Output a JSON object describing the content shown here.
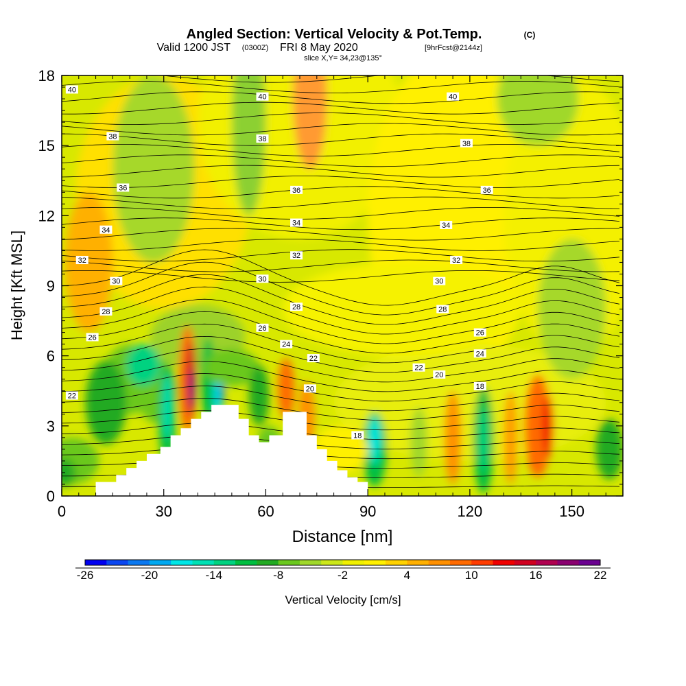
{
  "chart_data": {
    "type": "heatmap",
    "title": {
      "main": "Angled Section: Vertical Velocity & Pot.Temp.",
      "main_unit": "(C)",
      "valid_prefix": "Valid 1200 JST",
      "valid_utc": "(0300Z)",
      "valid_date": "FRI 8 May 2020",
      "forecast": "[9hrFcst@2144z]",
      "slice": "slice X,Y= 34,23@135°"
    },
    "xlabel": "Distance [nm]",
    "ylabel": "Height [Kft MSL]",
    "xlim": [
      0,
      165
    ],
    "ylim": [
      0,
      18
    ],
    "x_ticks": [
      "0",
      "30",
      "60",
      "90",
      "120",
      "150"
    ],
    "y_ticks": [
      "0",
      "3",
      "6",
      "9",
      "12",
      "15",
      "18"
    ],
    "colorbar": {
      "label": "Vertical Velocity [cm/s]",
      "tick_labels": [
        "-26",
        "-20",
        "-14",
        "-8",
        "-2",
        "4",
        "10",
        "16",
        "22"
      ],
      "colors": [
        "#0000f0",
        "#0a46f0",
        "#0a78f0",
        "#00a8f0",
        "#00e6e6",
        "#00e0b4",
        "#00d280",
        "#00be40",
        "#22aa22",
        "#6ac81e",
        "#a0d82a",
        "#cce81a",
        "#f0f000",
        "#fff000",
        "#ffd200",
        "#ffb000",
        "#ff9000",
        "#ff6a00",
        "#ff3c00",
        "#f00000",
        "#d00020",
        "#b00050",
        "#8a0070",
        "#6a0090"
      ]
    },
    "theta_labels": [
      {
        "text": "40",
        "x": 3,
        "y": 17.4
      },
      {
        "text": "40",
        "x": 59,
        "y": 17.1
      },
      {
        "text": "40",
        "x": 115,
        "y": 17.1
      },
      {
        "text": "38",
        "x": 15,
        "y": 15.4
      },
      {
        "text": "38",
        "x": 59,
        "y": 15.3
      },
      {
        "text": "38",
        "x": 119,
        "y": 15.1
      },
      {
        "text": "36",
        "x": 18,
        "y": 13.2
      },
      {
        "text": "36",
        "x": 69,
        "y": 13.1
      },
      {
        "text": "36",
        "x": 125,
        "y": 13.1
      },
      {
        "text": "34",
        "x": 13,
        "y": 11.4
      },
      {
        "text": "34",
        "x": 69,
        "y": 11.7
      },
      {
        "text": "34",
        "x": 113,
        "y": 11.6
      },
      {
        "text": "32",
        "x": 6,
        "y": 10.1
      },
      {
        "text": "32",
        "x": 69,
        "y": 10.3
      },
      {
        "text": "32",
        "x": 116,
        "y": 10.1
      },
      {
        "text": "30",
        "x": 16,
        "y": 9.2
      },
      {
        "text": "30",
        "x": 59,
        "y": 9.3
      },
      {
        "text": "30",
        "x": 111,
        "y": 9.2
      },
      {
        "text": "28",
        "x": 13,
        "y": 7.9
      },
      {
        "text": "28",
        "x": 69,
        "y": 8.1
      },
      {
        "text": "28",
        "x": 112,
        "y": 8.0
      },
      {
        "text": "26",
        "x": 9,
        "y": 6.8
      },
      {
        "text": "26",
        "x": 59,
        "y": 7.2
      },
      {
        "text": "26",
        "x": 123,
        "y": 7.0
      },
      {
        "text": "24",
        "x": 66,
        "y": 6.5
      },
      {
        "text": "24",
        "x": 123,
        "y": 6.1
      },
      {
        "text": "22",
        "x": 3,
        "y": 4.3
      },
      {
        "text": "22",
        "x": 74,
        "y": 5.9
      },
      {
        "text": "22",
        "x": 105,
        "y": 5.5
      },
      {
        "text": "20",
        "x": 73,
        "y": 4.6
      },
      {
        "text": "20",
        "x": 111,
        "y": 5.2
      },
      {
        "text": "18",
        "x": 87,
        "y": 2.6
      },
      {
        "text": "18",
        "x": 123,
        "y": 4.7
      }
    ],
    "terrain_profile": {
      "x": [
        0,
        10,
        10,
        16,
        16,
        19,
        19,
        22,
        22,
        25,
        25,
        29,
        29,
        32,
        32,
        35,
        35,
        38,
        38,
        41,
        41,
        44,
        44,
        52,
        52,
        55,
        55,
        58,
        58,
        61,
        61,
        65,
        65,
        72,
        72,
        75,
        75,
        78,
        78,
        81,
        81,
        84,
        84,
        87,
        87,
        90,
        90,
        165
      ],
      "y": [
        0,
        0,
        0.6,
        0.6,
        0.9,
        0.9,
        1.2,
        1.2,
        1.5,
        1.5,
        1.8,
        1.8,
        2.1,
        2.1,
        2.6,
        2.6,
        2.9,
        2.9,
        3.3,
        3.3,
        3.6,
        3.6,
        3.9,
        3.9,
        3.3,
        3.3,
        2.6,
        2.6,
        2.3,
        2.3,
        2.6,
        2.6,
        3.6,
        3.6,
        2.6,
        2.6,
        2.0,
        2.0,
        1.5,
        1.5,
        1.1,
        1.1,
        0.8,
        0.8,
        0.6,
        0.6,
        0,
        0
      ]
    }
  }
}
